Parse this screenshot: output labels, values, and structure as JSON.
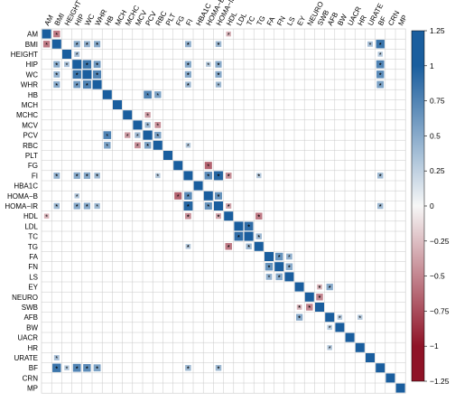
{
  "chart_data": {
    "type": "heatmap",
    "variables": [
      "AM",
      "BMI",
      "HEIGHT",
      "HIP",
      "WC",
      "WHR",
      "HB",
      "MCH",
      "MCHC",
      "MCV",
      "PCV",
      "RBC",
      "PLT",
      "FG",
      "FI",
      "HBA1C",
      "HOMA−B",
      "HOMA−IR",
      "HDL",
      "LDL",
      "TC",
      "TG",
      "FA",
      "FN",
      "LS",
      "EY",
      "NEURO",
      "SWB",
      "AFB",
      "BW",
      "UACR",
      "HR",
      "URATE",
      "BF",
      "CRN",
      "MP"
    ],
    "colorbar": {
      "ticks": [
        1.25,
        1,
        0.75,
        0.5,
        0.25,
        0,
        -0.25,
        -0.5,
        -0.75,
        -1,
        -1.25
      ],
      "tick_labels": [
        "1.25",
        "1",
        "0.75",
        "0.5",
        "0.25",
        "0",
        "−0.25",
        "−0.5",
        "−0.75",
        "−1",
        "−1.25"
      ],
      "range": [
        -1.25,
        1.25
      ]
    },
    "colors": {
      "positive": "#1a5e9e",
      "negative": "#8f1327",
      "neutral": "#f7f7f7",
      "grid": "#c8c8c8"
    },
    "significance_marker": "*",
    "diagonal_value": 1,
    "cells": [
      [
        1,
        0,
        -0.55,
        true
      ],
      [
        1,
        3,
        0.3,
        true
      ],
      [
        1,
        4,
        0.45,
        true
      ],
      [
        1,
        5,
        0.4,
        true
      ],
      [
        1,
        14,
        0.45,
        true
      ],
      [
        1,
        17,
        0.4,
        true
      ],
      [
        1,
        32,
        0.35,
        true
      ],
      [
        1,
        33,
        0.85,
        true
      ],
      [
        3,
        1,
        0.5,
        true
      ],
      [
        3,
        2,
        0.35,
        true
      ],
      [
        3,
        4,
        0.85,
        true
      ],
      [
        3,
        5,
        0.55,
        true
      ],
      [
        3,
        14,
        0.5,
        true
      ],
      [
        3,
        16,
        0.3,
        true
      ],
      [
        3,
        17,
        0.5,
        true
      ],
      [
        3,
        33,
        0.75,
        true
      ],
      [
        4,
        1,
        0.45,
        true
      ],
      [
        4,
        3,
        0.85,
        true
      ],
      [
        4,
        5,
        0.8,
        true
      ],
      [
        4,
        14,
        0.5,
        true
      ],
      [
        4,
        17,
        0.5,
        true
      ],
      [
        4,
        33,
        0.65,
        true
      ],
      [
        5,
        1,
        0.5,
        true
      ],
      [
        5,
        3,
        0.6,
        true
      ],
      [
        5,
        4,
        0.75,
        true
      ],
      [
        5,
        14,
        0.4,
        true
      ],
      [
        5,
        17,
        0.4,
        true
      ],
      [
        5,
        33,
        0.6,
        true
      ],
      [
        10,
        10,
        1,
        false
      ],
      [
        10,
        9,
        0.4,
        true
      ],
      [
        10,
        11,
        0.5,
        true
      ],
      [
        10,
        8,
        -0.4,
        true
      ],
      [
        10,
        6,
        0.75,
        true
      ],
      [
        11,
        10,
        0.55,
        true
      ],
      [
        11,
        6,
        0.55,
        true
      ],
      [
        11,
        9,
        -0.45,
        true
      ],
      [
        11,
        14,
        0.3,
        true
      ],
      [
        14,
        1,
        0.45,
        true
      ],
      [
        14,
        3,
        0.5,
        true
      ],
      [
        14,
        4,
        0.5,
        true
      ],
      [
        14,
        5,
        0.4,
        true
      ],
      [
        14,
        16,
        0.7,
        true
      ],
      [
        14,
        17,
        0.95,
        true
      ],
      [
        14,
        18,
        -0.4,
        true
      ],
      [
        14,
        21,
        0.3,
        true
      ],
      [
        14,
        33,
        0.4,
        true
      ],
      [
        16,
        14,
        0.7,
        true
      ],
      [
        16,
        17,
        0.6,
        true
      ],
      [
        16,
        13,
        -0.65,
        true
      ],
      [
        17,
        1,
        0.4,
        true
      ],
      [
        17,
        3,
        0.5,
        true
      ],
      [
        17,
        4,
        0.5,
        true
      ],
      [
        17,
        14,
        0.95,
        true
      ],
      [
        17,
        16,
        0.65,
        true
      ],
      [
        17,
        18,
        -0.35,
        true
      ],
      [
        17,
        33,
        0.4,
        true
      ],
      [
        18,
        14,
        -0.45,
        true
      ],
      [
        18,
        17,
        -0.35,
        true
      ],
      [
        18,
        21,
        -0.55,
        true
      ],
      [
        18,
        0,
        -0.3,
        true
      ],
      [
        19,
        20,
        0.9,
        true
      ],
      [
        20,
        19,
        0.9,
        true
      ],
      [
        20,
        21,
        0.4,
        true
      ],
      [
        21,
        18,
        -0.55,
        true
      ],
      [
        21,
        14,
        0.3,
        true
      ],
      [
        21,
        20,
        0.4,
        true
      ],
      [
        22,
        23,
        0.7,
        true
      ],
      [
        23,
        22,
        0.65,
        true
      ],
      [
        23,
        24,
        0.55,
        true
      ],
      [
        24,
        22,
        0.45,
        true
      ],
      [
        24,
        23,
        0.5,
        true
      ],
      [
        25,
        28,
        0.5,
        true
      ],
      [
        25,
        27,
        -0.3,
        true
      ],
      [
        26,
        27,
        -0.55,
        true
      ],
      [
        27,
        26,
        -0.5,
        true
      ],
      [
        27,
        25,
        -0.3,
        true
      ],
      [
        28,
        25,
        0.5,
        true
      ],
      [
        28,
        29,
        0.3,
        true
      ],
      [
        31,
        28,
        0.3,
        true
      ],
      [
        33,
        1,
        0.85,
        true
      ],
      [
        33,
        3,
        0.75,
        true
      ],
      [
        33,
        4,
        0.7,
        true
      ],
      [
        33,
        5,
        0.55,
        true
      ],
      [
        33,
        14,
        0.4,
        true
      ],
      [
        33,
        17,
        0.4,
        true
      ],
      [
        33,
        2,
        0.3,
        true
      ]
    ]
  }
}
